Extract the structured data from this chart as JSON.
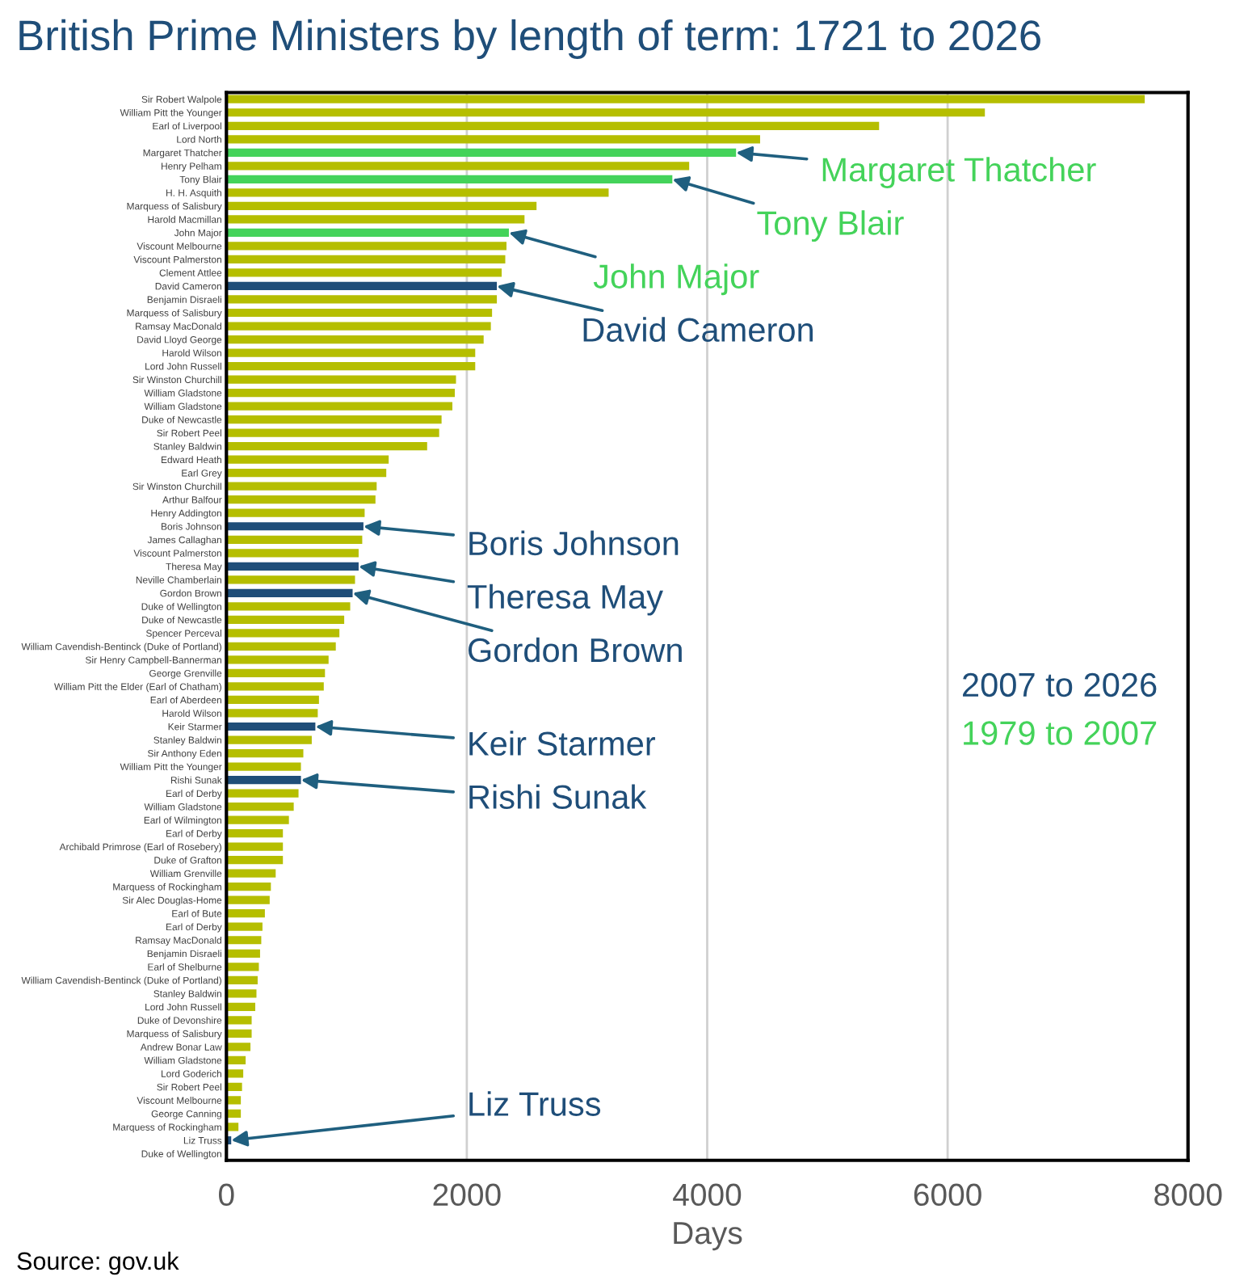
{
  "chart_data": {
    "type": "bar",
    "orientation": "horizontal",
    "title": "British Prime Ministers by length of term: 1721 to 2026",
    "xlabel": "Days",
    "categories": [
      "Sir Robert Walpole",
      "William Pitt the Younger",
      "Earl of Liverpool",
      "Lord North",
      "Margaret Thatcher",
      "Henry Pelham",
      "Tony Blair",
      "H. H. Asquith",
      "Marquess of Salisbury",
      "Harold Macmillan",
      "John Major",
      "Viscount Melbourne",
      "Viscount Palmerston",
      "Clement Attlee",
      "David Cameron",
      "Benjamin Disraeli",
      "Marquess of Salisbury",
      "Ramsay MacDonald",
      "David Lloyd George",
      "Harold Wilson",
      "Lord John Russell",
      "Sir Winston Churchill",
      "William Gladstone",
      "William Gladstone",
      "Duke of Newcastle",
      "Sir Robert Peel",
      "Stanley Baldwin",
      "Edward Heath",
      "Earl Grey",
      "Sir Winston Churchill",
      "Arthur Balfour",
      "Henry Addington",
      "Boris Johnson",
      "James Callaghan",
      "Viscount Palmerston",
      "Theresa May",
      "Neville Chamberlain",
      "Gordon Brown",
      "Duke of Wellington",
      "Duke of Newcastle",
      "Spencer Perceval",
      "William Cavendish-Bentinck (Duke of Portland)",
      "Sir Henry Campbell-Bannerman",
      "George Grenville",
      "William Pitt the Elder (Earl of Chatham)",
      "Earl of Aberdeen",
      "Harold Wilson",
      "Keir Starmer",
      "Stanley Baldwin",
      "Sir Anthony Eden",
      "William Pitt the Younger",
      "Rishi Sunak",
      "Earl of Derby",
      "William Gladstone",
      "Earl of Wilmington",
      "Earl of Derby",
      "Archibald Primrose (Earl of Rosebery)",
      "Duke of Grafton",
      "William Grenville",
      "Marquess of Rockingham",
      "Sir Alec Douglas-Home",
      "Earl of Bute",
      "Earl of Derby",
      "Ramsay MacDonald",
      "Benjamin Disraeli",
      "Earl of Shelburne",
      "William Cavendish-Bentinck (Duke of Portland)",
      "Stanley Baldwin",
      "Lord John Russell",
      "Duke of Devonshire",
      "Marquess of Salisbury",
      "Andrew Bonar Law",
      "William Gladstone",
      "Lord Goderich",
      "Sir Robert Peel",
      "Viscount Melbourne",
      "George Canning",
      "Marquess of Rockingham",
      "Liz Truss",
      "Duke of Wellington"
    ],
    "series": [
      {
        "color": "#b5be00",
        "values": [
          7640,
          6310,
          5430,
          4440,
          null,
          3850,
          null,
          3180,
          2580,
          2480,
          null,
          2330,
          2320,
          2290,
          null,
          2250,
          2210,
          2200,
          2140,
          2070,
          2070,
          1910,
          1900,
          1880,
          1790,
          1770,
          1670,
          1350,
          1330,
          1250,
          1240,
          1150,
          null,
          1130,
          1100,
          null,
          1070,
          null,
          1030,
          980,
          940,
          910,
          850,
          820,
          810,
          770,
          760,
          null,
          710,
          640,
          620,
          null,
          600,
          560,
          520,
          470,
          470,
          470,
          410,
          370,
          360,
          320,
          300,
          290,
          280,
          270,
          260,
          250,
          240,
          210,
          210,
          200,
          160,
          140,
          130,
          120,
          120,
          100,
          null,
          10
        ]
      },
      {
        "name": "2007 to 2026",
        "color": "#1f4e79",
        "values": [
          null,
          null,
          null,
          null,
          null,
          null,
          null,
          null,
          null,
          null,
          null,
          null,
          null,
          null,
          2250,
          null,
          null,
          null,
          null,
          null,
          null,
          null,
          null,
          null,
          null,
          null,
          null,
          null,
          null,
          null,
          null,
          null,
          1140,
          null,
          null,
          1100,
          null,
          1050,
          null,
          null,
          null,
          null,
          null,
          null,
          null,
          null,
          null,
          740,
          null,
          null,
          null,
          620,
          null,
          null,
          null,
          null,
          null,
          null,
          null,
          null,
          null,
          null,
          null,
          null,
          null,
          null,
          null,
          null,
          null,
          null,
          null,
          null,
          null,
          null,
          null,
          null,
          null,
          null,
          40,
          null
        ]
      },
      {
        "name": "1979 to 2007",
        "color": "#44d35a",
        "values": [
          null,
          null,
          null,
          null,
          4240,
          null,
          3710,
          null,
          null,
          null,
          2350,
          null,
          null,
          null,
          null,
          null,
          null,
          null,
          null,
          null,
          null,
          null,
          null,
          null,
          null,
          null,
          null,
          null,
          null,
          null,
          null,
          null,
          null,
          null,
          null,
          null,
          null,
          null,
          null,
          null,
          null,
          null,
          null,
          null,
          null,
          null,
          null,
          null,
          null,
          null,
          null,
          null,
          null,
          null,
          null,
          null,
          null,
          null,
          null,
          null,
          null,
          null,
          null,
          null,
          null,
          null,
          null,
          null,
          null,
          null,
          null,
          null,
          null,
          null,
          null,
          null,
          null,
          null,
          null,
          null
        ]
      }
    ],
    "xlim": [
      0,
      8000
    ],
    "xticks": [
      0,
      2000,
      4000,
      6000,
      8000
    ],
    "grid": "x",
    "legend": "right",
    "annotations": [
      {
        "text": "Margaret Thatcher",
        "x": 4240,
        "y": "Margaret Thatcher"
      },
      {
        "text": "Tony Blair",
        "x": 3710,
        "y": "Tony Blair"
      },
      {
        "text": "John Major",
        "x": 2350,
        "y": "John Major"
      },
      {
        "text": "David Cameron",
        "x": 2250,
        "y": "David Cameron"
      },
      {
        "text": "Boris Johnson",
        "x": 1140,
        "y": "Boris Johnson"
      },
      {
        "text": "Theresa May",
        "x": 1100,
        "y": "Theresa May"
      },
      {
        "text": "Gordon Brown",
        "x": 1050,
        "y": "Gordon Brown"
      },
      {
        "text": "Keir Starmer",
        "x": 740,
        "y": "Keir Starmer"
      },
      {
        "text": "Rishi Sunak",
        "x": 620,
        "y": "Rishi Sunak"
      },
      {
        "text": "Liz Truss",
        "x": 40,
        "y": "Liz Truss"
      },
      "Source: gov.uk"
    ]
  }
}
